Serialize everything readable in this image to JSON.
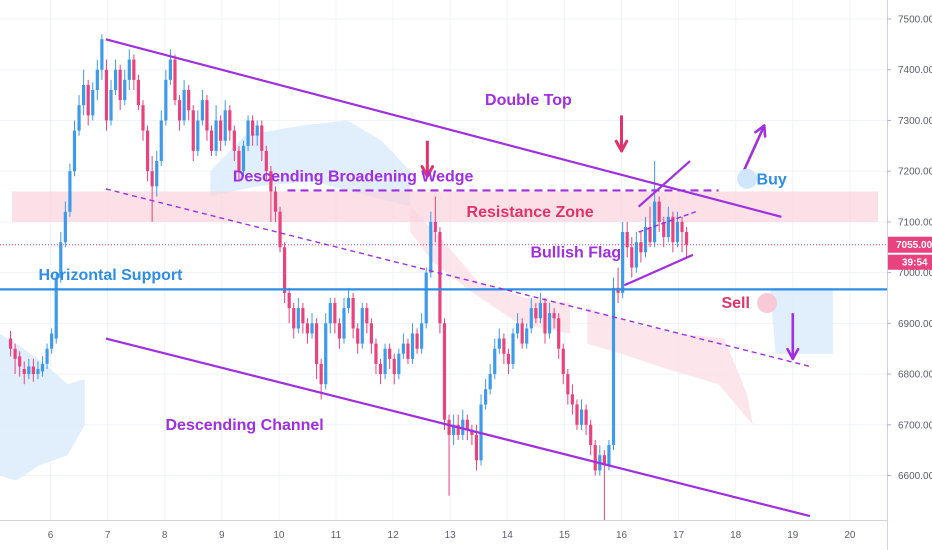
{
  "chart_data": {
    "type": "candlestick",
    "x_ticks": [
      "6",
      "7",
      "8",
      "9",
      "10",
      "11",
      "12",
      "13",
      "14",
      "15",
      "16",
      "17",
      "18",
      "19",
      "20"
    ],
    "y_ticks": [
      "6600.00",
      "6700.00",
      "6800.00",
      "6900.00",
      "7000.00",
      "7100.00",
      "7200.00",
      "7300.00",
      "7400.00",
      "7500.00"
    ],
    "ylim": [
      6510,
      7545
    ],
    "current_price": "7055.00",
    "countdown": "39:54",
    "colors": {
      "up": "#3d9be9",
      "down": "#e8437f",
      "pattern": "#a02fe0",
      "support": "#2e8ee6",
      "price_line": "#e8437f"
    },
    "horizontal_support": 6967,
    "resistance_zone": [
      7100,
      7160
    ],
    "annotations": {
      "double_top": "Double Top",
      "wedge": "Descending Broadening Wedge",
      "resistance": "Resistance Zone",
      "flag": "Bullish Flag",
      "support": "Horizontal Support",
      "sell": "Sell",
      "buy": "Buy",
      "channel": "Descending Channel"
    },
    "candles": [
      [
        5.3,
        6870,
        6850,
        6885,
        6835
      ],
      [
        5.38,
        6850,
        6830,
        6860,
        6800
      ],
      [
        5.46,
        6835,
        6815,
        6845,
        6795
      ],
      [
        5.54,
        6810,
        6800,
        6825,
        6780
      ],
      [
        5.62,
        6800,
        6815,
        6830,
        6790
      ],
      [
        5.7,
        6815,
        6800,
        6830,
        6785
      ],
      [
        5.78,
        6800,
        6810,
        6825,
        6790
      ],
      [
        5.86,
        6805,
        6820,
        6835,
        6795
      ],
      [
        5.94,
        6820,
        6850,
        6860,
        6810
      ],
      [
        6.02,
        6850,
        6880,
        6890,
        6840
      ],
      [
        6.1,
        6870,
        6990,
        7000,
        6860
      ],
      [
        6.18,
        6990,
        7060,
        7080,
        6980
      ],
      [
        6.26,
        7060,
        7120,
        7140,
        7050
      ],
      [
        6.34,
        7120,
        7200,
        7215,
        7110
      ],
      [
        6.42,
        7200,
        7280,
        7300,
        7190
      ],
      [
        6.5,
        7280,
        7330,
        7350,
        7270
      ],
      [
        6.58,
        7330,
        7370,
        7400,
        7310
      ],
      [
        6.66,
        7370,
        7310,
        7380,
        7290
      ],
      [
        6.74,
        7310,
        7360,
        7375,
        7300
      ],
      [
        6.82,
        7360,
        7400,
        7420,
        7340
      ],
      [
        6.9,
        7400,
        7460,
        7470,
        7380
      ],
      [
        6.98,
        7400,
        7300,
        7420,
        7280
      ],
      [
        7.06,
        7300,
        7360,
        7380,
        7290
      ],
      [
        7.14,
        7360,
        7400,
        7420,
        7350
      ],
      [
        7.22,
        7400,
        7340,
        7410,
        7320
      ],
      [
        7.3,
        7340,
        7380,
        7400,
        7330
      ],
      [
        7.38,
        7380,
        7420,
        7440,
        7360
      ],
      [
        7.46,
        7420,
        7380,
        7430,
        7360
      ],
      [
        7.54,
        7380,
        7330,
        7390,
        7320
      ],
      [
        7.62,
        7330,
        7280,
        7340,
        7260
      ],
      [
        7.7,
        7280,
        7200,
        7290,
        7180
      ],
      [
        7.78,
        7200,
        7170,
        7230,
        7100
      ],
      [
        7.86,
        7170,
        7220,
        7240,
        7150
      ],
      [
        7.94,
        7220,
        7300,
        7320,
        7210
      ],
      [
        8.02,
        7300,
        7380,
        7400,
        7290
      ],
      [
        8.1,
        7380,
        7420,
        7440,
        7370
      ],
      [
        8.18,
        7420,
        7340,
        7430,
        7330
      ],
      [
        8.26,
        7340,
        7300,
        7350,
        7280
      ],
      [
        8.34,
        7300,
        7360,
        7380,
        7290
      ],
      [
        8.42,
        7360,
        7320,
        7370,
        7300
      ],
      [
        8.5,
        7320,
        7240,
        7330,
        7220
      ],
      [
        8.58,
        7240,
        7300,
        7320,
        7230
      ],
      [
        8.66,
        7300,
        7340,
        7360,
        7290
      ],
      [
        8.74,
        7340,
        7280,
        7350,
        7260
      ],
      [
        8.82,
        7280,
        7240,
        7290,
        7230
      ],
      [
        8.9,
        7240,
        7300,
        7330,
        7230
      ],
      [
        8.98,
        7300,
        7260,
        7310,
        7240
      ],
      [
        9.06,
        7260,
        7320,
        7340,
        7250
      ],
      [
        9.14,
        7320,
        7280,
        7330,
        7260
      ],
      [
        9.22,
        7280,
        7240,
        7290,
        7220
      ],
      [
        9.3,
        7240,
        7200,
        7250,
        7180
      ],
      [
        9.38,
        7200,
        7250,
        7260,
        7190
      ],
      [
        9.46,
        7250,
        7300,
        7310,
        7240
      ],
      [
        9.54,
        7300,
        7270,
        7310,
        7250
      ],
      [
        9.62,
        7270,
        7290,
        7300,
        7250
      ],
      [
        9.7,
        7290,
        7240,
        7300,
        7220
      ],
      [
        9.78,
        7240,
        7200,
        7250,
        7180
      ],
      [
        9.86,
        7200,
        7160,
        7210,
        7100
      ],
      [
        9.94,
        7160,
        7120,
        7170,
        7100
      ],
      [
        10.02,
        7120,
        7050,
        7130,
        7040
      ],
      [
        10.1,
        7050,
        6960,
        7060,
        6940
      ],
      [
        10.18,
        6960,
        6930,
        6970,
        6900
      ],
      [
        10.26,
        6930,
        6890,
        6940,
        6870
      ],
      [
        10.34,
        6890,
        6930,
        6950,
        6880
      ],
      [
        10.42,
        6930,
        6900,
        6940,
        6880
      ],
      [
        10.5,
        6900,
        6880,
        6910,
        6860
      ],
      [
        10.58,
        6880,
        6900,
        6920,
        6870
      ],
      [
        10.66,
        6900,
        6820,
        6910,
        6790
      ],
      [
        10.74,
        6820,
        6780,
        6830,
        6750
      ],
      [
        10.82,
        6780,
        6900,
        6920,
        6770
      ],
      [
        10.9,
        6900,
        6940,
        6950,
        6880
      ],
      [
        10.98,
        6940,
        6900,
        6950,
        6880
      ],
      [
        11.06,
        6900,
        6870,
        6910,
        6850
      ],
      [
        11.14,
        6870,
        6930,
        6950,
        6860
      ],
      [
        11.22,
        6930,
        6950,
        6970,
        6920
      ],
      [
        11.3,
        6950,
        6890,
        6960,
        6870
      ],
      [
        11.38,
        6890,
        6860,
        6900,
        6840
      ],
      [
        11.46,
        6860,
        6930,
        6940,
        6850
      ],
      [
        11.54,
        6930,
        6900,
        6940,
        6880
      ],
      [
        11.62,
        6900,
        6860,
        6910,
        6840
      ],
      [
        11.7,
        6860,
        6820,
        6870,
        6800
      ],
      [
        11.78,
        6820,
        6800,
        6830,
        6780
      ],
      [
        11.86,
        6800,
        6850,
        6860,
        6790
      ],
      [
        11.94,
        6850,
        6830,
        6860,
        6810
      ],
      [
        12.02,
        6830,
        6800,
        6840,
        6780
      ],
      [
        12.1,
        6800,
        6840,
        6850,
        6790
      ],
      [
        12.18,
        6840,
        6860,
        6880,
        6830
      ],
      [
        12.26,
        6860,
        6830,
        6870,
        6820
      ],
      [
        12.34,
        6830,
        6880,
        6900,
        6820
      ],
      [
        12.42,
        6880,
        6850,
        6890,
        6840
      ],
      [
        12.5,
        6850,
        6900,
        6920,
        6840
      ],
      [
        12.58,
        6900,
        7000,
        7010,
        6890
      ],
      [
        12.66,
        7000,
        7100,
        7120,
        6990
      ],
      [
        12.74,
        7100,
        7080,
        7150,
        7060
      ],
      [
        12.82,
        7080,
        6900,
        7090,
        6880
      ],
      [
        12.9,
        6900,
        6710,
        6910,
        6690
      ],
      [
        12.98,
        6710,
        6680,
        6720,
        6560
      ],
      [
        13.06,
        6680,
        6700,
        6720,
        6660
      ],
      [
        13.14,
        6700,
        6680,
        6720,
        6670
      ],
      [
        13.22,
        6680,
        6710,
        6730,
        6670
      ],
      [
        13.3,
        6710,
        6690,
        6720,
        6670
      ],
      [
        13.38,
        6690,
        6680,
        6700,
        6660
      ],
      [
        13.46,
        6680,
        6630,
        6700,
        6610
      ],
      [
        13.54,
        6630,
        6740,
        6760,
        6620
      ],
      [
        13.62,
        6740,
        6770,
        6790,
        6730
      ],
      [
        13.7,
        6770,
        6800,
        6820,
        6760
      ],
      [
        13.78,
        6800,
        6850,
        6870,
        6790
      ],
      [
        13.86,
        6850,
        6870,
        6890,
        6840
      ],
      [
        13.94,
        6870,
        6840,
        6880,
        6820
      ],
      [
        14.02,
        6840,
        6820,
        6850,
        6800
      ],
      [
        14.1,
        6820,
        6880,
        6890,
        6810
      ],
      [
        14.18,
        6880,
        6900,
        6920,
        6870
      ],
      [
        14.26,
        6900,
        6860,
        6910,
        6850
      ],
      [
        14.34,
        6860,
        6890,
        6900,
        6850
      ],
      [
        14.42,
        6890,
        6930,
        6950,
        6880
      ],
      [
        14.5,
        6930,
        6910,
        6940,
        6900
      ],
      [
        14.58,
        6910,
        6940,
        6960,
        6900
      ],
      [
        14.66,
        6940,
        6880,
        6950,
        6860
      ],
      [
        14.74,
        6880,
        6920,
        6940,
        6870
      ],
      [
        14.82,
        6920,
        6910,
        6930,
        6890
      ],
      [
        14.9,
        6910,
        6850,
        6920,
        6830
      ],
      [
        14.98,
        6850,
        6800,
        6860,
        6780
      ],
      [
        15.06,
        6800,
        6760,
        6810,
        6740
      ],
      [
        15.14,
        6760,
        6740,
        6780,
        6720
      ],
      [
        15.22,
        6740,
        6700,
        6750,
        6690
      ],
      [
        15.3,
        6700,
        6730,
        6750,
        6690
      ],
      [
        15.38,
        6730,
        6700,
        6740,
        6680
      ],
      [
        15.46,
        6700,
        6660,
        6710,
        6640
      ],
      [
        15.54,
        6660,
        6610,
        6670,
        6600
      ],
      [
        15.62,
        6610,
        6640,
        6660,
        6600
      ],
      [
        15.7,
        6640,
        6620,
        6650,
        6510
      ],
      [
        15.78,
        6620,
        6660,
        6670,
        6610
      ],
      [
        15.86,
        6660,
        6970,
        6990,
        6650
      ],
      [
        15.94,
        6970,
        6960,
        7010,
        6940
      ],
      [
        16.02,
        6960,
        7080,
        7100,
        6950
      ],
      [
        16.1,
        7080,
        7050,
        7100,
        7030
      ],
      [
        16.18,
        7050,
        7010,
        7070,
        6990
      ],
      [
        16.26,
        7010,
        7060,
        7080,
        7000
      ],
      [
        16.34,
        7060,
        7040,
        7080,
        7020
      ],
      [
        16.42,
        7040,
        7090,
        7110,
        7030
      ],
      [
        16.5,
        7090,
        7060,
        7130,
        7050
      ],
      [
        16.58,
        7060,
        7140,
        7220,
        7050
      ],
      [
        16.66,
        7140,
        7100,
        7150,
        7080
      ],
      [
        16.74,
        7100,
        7070,
        7110,
        7050
      ],
      [
        16.82,
        7070,
        7110,
        7130,
        7060
      ],
      [
        16.9,
        7110,
        7060,
        7120,
        7040
      ],
      [
        16.98,
        7060,
        7100,
        7120,
        7050
      ],
      [
        17.06,
        7100,
        7080,
        7110,
        7040
      ],
      [
        17.14,
        7080,
        7055,
        7090,
        7030
      ]
    ]
  }
}
